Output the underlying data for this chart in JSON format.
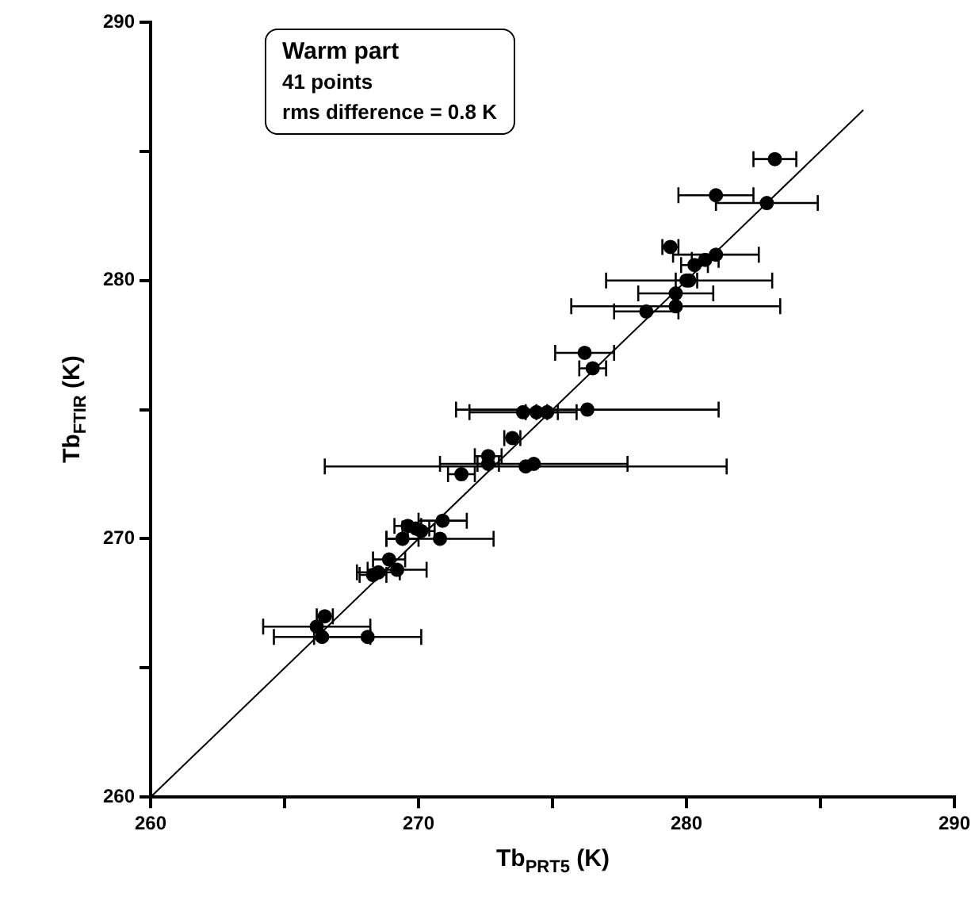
{
  "chart_data": {
    "type": "scatter",
    "xlabel": "Tb$_{PRT5}$ (K)",
    "ylabel": "Tb$_{FTIR}$ (K)",
    "annotations": [
      "Warm part",
      "41 points",
      "rms difference = 0.8 K"
    ],
    "xlim": [
      260,
      290
    ],
    "ylim": [
      260,
      290
    ],
    "xticks": [
      260,
      {
        "value": 265,
        "label": null
      },
      270,
      {
        "value": 275,
        "label": null
      },
      280,
      {
        "value": 285,
        "label": null
      },
      290
    ],
    "yticks": [
      260,
      {
        "value": 265,
        "label": null
      },
      270,
      {
        "value": 275,
        "label": null
      },
      280,
      {
        "value": 285,
        "label": null
      },
      290
    ],
    "marker": "circle",
    "legend": false,
    "series": [
      {
        "color": "#000000",
        "x": [
          266.2,
          266.5,
          266.4,
          268.1,
          268.3,
          268.5,
          268.9,
          269.2,
          269.4,
          269.6,
          269.9,
          270.1,
          270.8,
          270.9,
          271.6,
          272.6,
          272.6,
          274.0,
          274.3,
          273.5,
          273.9,
          274.4,
          274.8,
          276.3,
          276.2,
          276.5,
          278.5,
          279.6,
          279.6,
          280.0,
          280.1,
          280.3,
          280.7,
          281.1,
          279.4,
          283.0,
          281.1,
          283.3
        ],
        "values": [
          266.6,
          267.0,
          266.2,
          266.2,
          268.6,
          268.7,
          269.2,
          268.8,
          270.0,
          270.5,
          270.4,
          270.3,
          270.0,
          270.7,
          272.5,
          273.2,
          272.9,
          272.8,
          272.9,
          273.9,
          274.9,
          274.9,
          274.9,
          275.0,
          277.2,
          276.6,
          278.8,
          279.0,
          279.5,
          280.0,
          280.0,
          280.6,
          280.8,
          281.0,
          281.3,
          283.0,
          283.3,
          284.7
        ],
        "xerrors": [
          2,
          0.3,
          1.8,
          2,
          0.5,
          0.8,
          0.6,
          1.1,
          0.6,
          0.5,
          0.5,
          0.5,
          2,
          0.9,
          0.5,
          0.5,
          0.4,
          7.5,
          3.5,
          0.3,
          2,
          0.4,
          0.4,
          4.9,
          1.1,
          0.5,
          1.2,
          3.9,
          1.4,
          0.4,
          3.1,
          0.5,
          0.5,
          1.6,
          0.3,
          1.9,
          1.4,
          0.8
        ]
      },
      {
        "type": "line",
        "color": "#000000",
        "marker": "none",
        "x": [
          260,
          286.6
        ],
        "values": [
          260,
          286.6
        ]
      }
    ]
  }
}
